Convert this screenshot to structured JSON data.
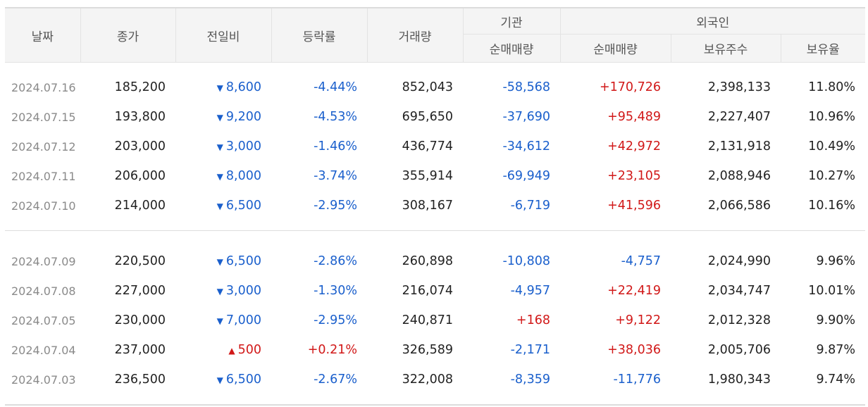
{
  "headers": {
    "date": "날짜",
    "close": "종가",
    "change": "전일비",
    "rate": "등락률",
    "volume": "거래량",
    "institution": "기관",
    "foreign": "외국인",
    "inst_net": "순매매량",
    "frgn_net": "순매매량",
    "frgn_shares": "보유주수",
    "frgn_ratio": "보유율"
  },
  "rows_top": [
    {
      "date": "2024.07.16",
      "close": "185,200",
      "dir": "down",
      "arrow": "▼",
      "change": "8,600",
      "rate": "-4.44%",
      "volume": "852,043",
      "inst": "-58,568",
      "inst_dir": "down",
      "frgn": "+170,726",
      "frgn_dir": "up",
      "shares": "2,398,133",
      "ratio": "11.80%"
    },
    {
      "date": "2024.07.15",
      "close": "193,800",
      "dir": "down",
      "arrow": "▼",
      "change": "9,200",
      "rate": "-4.53%",
      "volume": "695,650",
      "inst": "-37,690",
      "inst_dir": "down",
      "frgn": "+95,489",
      "frgn_dir": "up",
      "shares": "2,227,407",
      "ratio": "10.96%"
    },
    {
      "date": "2024.07.12",
      "close": "203,000",
      "dir": "down",
      "arrow": "▼",
      "change": "3,000",
      "rate": "-1.46%",
      "volume": "436,774",
      "inst": "-34,612",
      "inst_dir": "down",
      "frgn": "+42,972",
      "frgn_dir": "up",
      "shares": "2,131,918",
      "ratio": "10.49%"
    },
    {
      "date": "2024.07.11",
      "close": "206,000",
      "dir": "down",
      "arrow": "▼",
      "change": "8,000",
      "rate": "-3.74%",
      "volume": "355,914",
      "inst": "-69,949",
      "inst_dir": "down",
      "frgn": "+23,105",
      "frgn_dir": "up",
      "shares": "2,088,946",
      "ratio": "10.27%"
    },
    {
      "date": "2024.07.10",
      "close": "214,000",
      "dir": "down",
      "arrow": "▼",
      "change": "6,500",
      "rate": "-2.95%",
      "volume": "308,167",
      "inst": "-6,719",
      "inst_dir": "down",
      "frgn": "+41,596",
      "frgn_dir": "up",
      "shares": "2,066,586",
      "ratio": "10.16%"
    }
  ],
  "rows_bottom": [
    {
      "date": "2024.07.09",
      "close": "220,500",
      "dir": "down",
      "arrow": "▼",
      "change": "6,500",
      "rate": "-2.86%",
      "volume": "260,898",
      "inst": "-10,808",
      "inst_dir": "down",
      "frgn": "-4,757",
      "frgn_dir": "down",
      "shares": "2,024,990",
      "ratio": "9.96%"
    },
    {
      "date": "2024.07.08",
      "close": "227,000",
      "dir": "down",
      "arrow": "▼",
      "change": "3,000",
      "rate": "-1.30%",
      "volume": "216,074",
      "inst": "-4,957",
      "inst_dir": "down",
      "frgn": "+22,419",
      "frgn_dir": "up",
      "shares": "2,034,747",
      "ratio": "10.01%"
    },
    {
      "date": "2024.07.05",
      "close": "230,000",
      "dir": "down",
      "arrow": "▼",
      "change": "7,000",
      "rate": "-2.95%",
      "volume": "240,871",
      "inst": "+168",
      "inst_dir": "up",
      "frgn": "+9,122",
      "frgn_dir": "up",
      "shares": "2,012,328",
      "ratio": "9.90%"
    },
    {
      "date": "2024.07.04",
      "close": "237,000",
      "dir": "up",
      "arrow": "▲",
      "change": "500",
      "rate": "+0.21%",
      "volume": "326,589",
      "inst": "-2,171",
      "inst_dir": "down",
      "frgn": "+38,036",
      "frgn_dir": "up",
      "shares": "2,005,706",
      "ratio": "9.87%"
    },
    {
      "date": "2024.07.03",
      "close": "236,500",
      "dir": "down",
      "arrow": "▼",
      "change": "6,500",
      "rate": "-2.67%",
      "volume": "322,008",
      "inst": "-8,359",
      "inst_dir": "down",
      "frgn": "-11,776",
      "frgn_dir": "down",
      "shares": "1,980,343",
      "ratio": "9.74%"
    }
  ]
}
